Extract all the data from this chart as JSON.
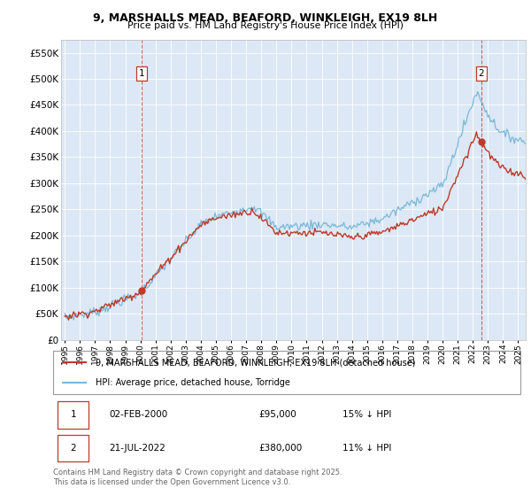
{
  "title_line1": "9, MARSHALLS MEAD, BEAFORD, WINKLEIGH, EX19 8LH",
  "title_line2": "Price paid vs. HM Land Registry's House Price Index (HPI)",
  "legend_label1": "9, MARSHALLS MEAD, BEAFORD, WINKLEIGH, EX19 8LH (detached house)",
  "legend_label2": "HPI: Average price, detached house, Torridge",
  "annotation1": {
    "num": "1",
    "date": "02-FEB-2000",
    "price": "£95,000",
    "pct": "15% ↓ HPI"
  },
  "annotation2": {
    "num": "2",
    "date": "21-JUL-2022",
    "price": "£380,000",
    "pct": "11% ↓ HPI"
  },
  "footer": "Contains HM Land Registry data © Crown copyright and database right 2025.\nThis data is licensed under the Open Government Licence v3.0.",
  "vline1_x": 2000.09,
  "vline2_x": 2022.55,
  "sale1_x": 2000.09,
  "sale1_y": 95000,
  "sale2_x": 2022.55,
  "sale2_y": 380000,
  "hpi_color": "#7ab8d9",
  "price_color": "#c0392b",
  "vline_color": "#c0392b",
  "background_color": "#dce8f5",
  "ylim": [
    0,
    575000
  ],
  "xlim_start": 1994.75,
  "xlim_end": 2025.5,
  "yticks": [
    0,
    50000,
    100000,
    150000,
    200000,
    250000,
    300000,
    350000,
    400000,
    450000,
    500000,
    550000
  ]
}
